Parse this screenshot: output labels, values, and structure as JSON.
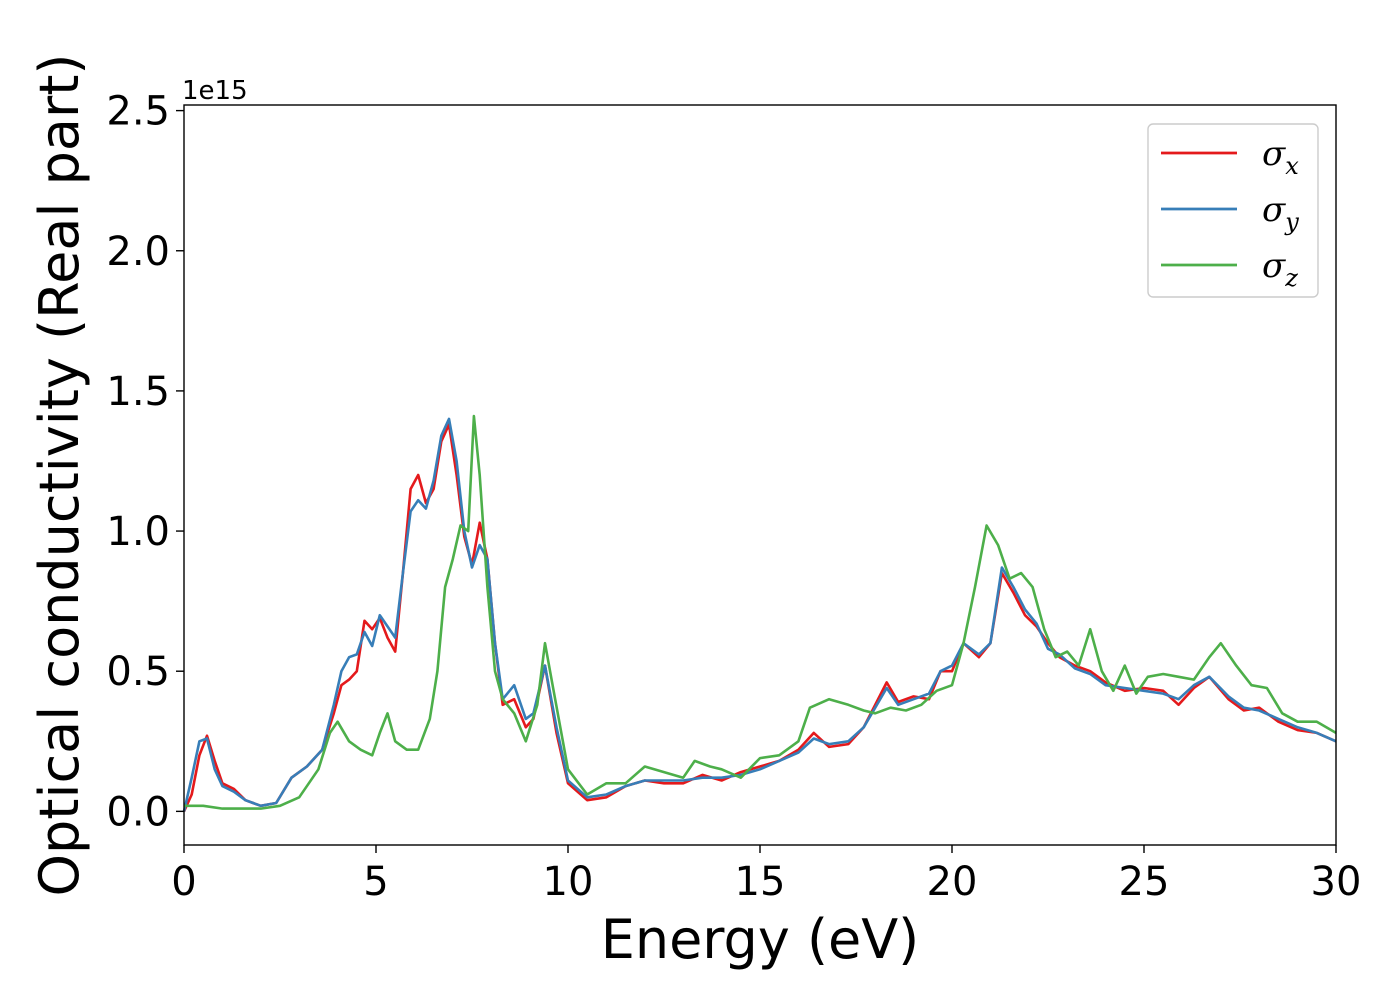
{
  "chart_data": {
    "type": "line",
    "xlabel": "Energy (eV)",
    "ylabel": "Optical conductivity (Real part)",
    "y_offset_label": "1e15",
    "xlim": [
      0,
      30
    ],
    "ylim": [
      -0.12,
      2.52
    ],
    "xticks": [
      "0",
      "5",
      "10",
      "15",
      "20",
      "25",
      "30"
    ],
    "yticks": [
      "0.0",
      "0.5",
      "1.0",
      "1.5",
      "2.0",
      "2.5"
    ],
    "xtick_values": [
      0,
      5,
      10,
      15,
      20,
      25,
      30
    ],
    "ytick_values": [
      0.0,
      0.5,
      1.0,
      1.5,
      2.0,
      2.5
    ],
    "grid": false,
    "legend_position": "top-right",
    "series": [
      {
        "name": "σ",
        "subscript": "x",
        "color": "#e41a1c",
        "points": [
          [
            0,
            0.0
          ],
          [
            0.2,
            0.06
          ],
          [
            0.4,
            0.2
          ],
          [
            0.6,
            0.27
          ],
          [
            0.8,
            0.18
          ],
          [
            1.0,
            0.1
          ],
          [
            1.3,
            0.08
          ],
          [
            1.6,
            0.04
          ],
          [
            2.0,
            0.02
          ],
          [
            2.4,
            0.03
          ],
          [
            2.8,
            0.12
          ],
          [
            3.2,
            0.16
          ],
          [
            3.6,
            0.22
          ],
          [
            3.9,
            0.35
          ],
          [
            4.1,
            0.45
          ],
          [
            4.3,
            0.47
          ],
          [
            4.5,
            0.5
          ],
          [
            4.7,
            0.68
          ],
          [
            4.9,
            0.65
          ],
          [
            5.1,
            0.69
          ],
          [
            5.3,
            0.62
          ],
          [
            5.5,
            0.57
          ],
          [
            5.7,
            0.85
          ],
          [
            5.9,
            1.15
          ],
          [
            6.1,
            1.2
          ],
          [
            6.3,
            1.1
          ],
          [
            6.5,
            1.15
          ],
          [
            6.7,
            1.32
          ],
          [
            6.9,
            1.38
          ],
          [
            7.1,
            1.2
          ],
          [
            7.3,
            0.98
          ],
          [
            7.5,
            0.88
          ],
          [
            7.7,
            1.03
          ],
          [
            7.9,
            0.9
          ],
          [
            8.1,
            0.6
          ],
          [
            8.3,
            0.38
          ],
          [
            8.6,
            0.4
          ],
          [
            8.9,
            0.3
          ],
          [
            9.1,
            0.33
          ],
          [
            9.4,
            0.52
          ],
          [
            9.7,
            0.28
          ],
          [
            10.0,
            0.1
          ],
          [
            10.5,
            0.04
          ],
          [
            11.0,
            0.05
          ],
          [
            11.5,
            0.09
          ],
          [
            12.0,
            0.11
          ],
          [
            12.5,
            0.1
          ],
          [
            13.0,
            0.1
          ],
          [
            13.5,
            0.13
          ],
          [
            14.0,
            0.11
          ],
          [
            14.5,
            0.14
          ],
          [
            15.0,
            0.16
          ],
          [
            15.5,
            0.18
          ],
          [
            16.0,
            0.22
          ],
          [
            16.4,
            0.28
          ],
          [
            16.8,
            0.23
          ],
          [
            17.3,
            0.24
          ],
          [
            17.7,
            0.3
          ],
          [
            18.0,
            0.38
          ],
          [
            18.3,
            0.46
          ],
          [
            18.6,
            0.39
          ],
          [
            19.0,
            0.41
          ],
          [
            19.4,
            0.4
          ],
          [
            19.7,
            0.5
          ],
          [
            20.0,
            0.5
          ],
          [
            20.3,
            0.6
          ],
          [
            20.7,
            0.55
          ],
          [
            21.0,
            0.6
          ],
          [
            21.3,
            0.85
          ],
          [
            21.6,
            0.78
          ],
          [
            21.9,
            0.7
          ],
          [
            22.2,
            0.66
          ],
          [
            22.5,
            0.6
          ],
          [
            22.8,
            0.55
          ],
          [
            23.2,
            0.52
          ],
          [
            23.6,
            0.5
          ],
          [
            24.0,
            0.46
          ],
          [
            24.5,
            0.43
          ],
          [
            25.0,
            0.44
          ],
          [
            25.5,
            0.43
          ],
          [
            25.9,
            0.38
          ],
          [
            26.3,
            0.44
          ],
          [
            26.7,
            0.48
          ],
          [
            27.2,
            0.4
          ],
          [
            27.6,
            0.36
          ],
          [
            28.0,
            0.37
          ],
          [
            28.5,
            0.32
          ],
          [
            29.0,
            0.29
          ],
          [
            29.5,
            0.28
          ],
          [
            30.0,
            0.25
          ]
        ]
      },
      {
        "name": "σ",
        "subscript": "y",
        "color": "#377eb8",
        "points": [
          [
            0,
            0.0
          ],
          [
            0.2,
            0.12
          ],
          [
            0.4,
            0.25
          ],
          [
            0.6,
            0.26
          ],
          [
            0.8,
            0.15
          ],
          [
            1.0,
            0.09
          ],
          [
            1.3,
            0.07
          ],
          [
            1.6,
            0.04
          ],
          [
            2.0,
            0.02
          ],
          [
            2.4,
            0.03
          ],
          [
            2.8,
            0.12
          ],
          [
            3.2,
            0.16
          ],
          [
            3.6,
            0.22
          ],
          [
            3.9,
            0.38
          ],
          [
            4.1,
            0.5
          ],
          [
            4.3,
            0.55
          ],
          [
            4.5,
            0.56
          ],
          [
            4.7,
            0.64
          ],
          [
            4.9,
            0.59
          ],
          [
            5.1,
            0.7
          ],
          [
            5.3,
            0.66
          ],
          [
            5.5,
            0.62
          ],
          [
            5.7,
            0.85
          ],
          [
            5.9,
            1.07
          ],
          [
            6.1,
            1.11
          ],
          [
            6.3,
            1.08
          ],
          [
            6.5,
            1.18
          ],
          [
            6.7,
            1.34
          ],
          [
            6.9,
            1.4
          ],
          [
            7.1,
            1.25
          ],
          [
            7.3,
            1.0
          ],
          [
            7.5,
            0.87
          ],
          [
            7.7,
            0.95
          ],
          [
            7.9,
            0.9
          ],
          [
            8.1,
            0.6
          ],
          [
            8.3,
            0.4
          ],
          [
            8.6,
            0.45
          ],
          [
            8.9,
            0.33
          ],
          [
            9.1,
            0.35
          ],
          [
            9.4,
            0.52
          ],
          [
            9.7,
            0.3
          ],
          [
            10.0,
            0.11
          ],
          [
            10.5,
            0.05
          ],
          [
            11.0,
            0.06
          ],
          [
            11.5,
            0.09
          ],
          [
            12.0,
            0.11
          ],
          [
            12.5,
            0.11
          ],
          [
            13.0,
            0.11
          ],
          [
            13.5,
            0.12
          ],
          [
            14.0,
            0.12
          ],
          [
            14.5,
            0.13
          ],
          [
            15.0,
            0.15
          ],
          [
            15.5,
            0.18
          ],
          [
            16.0,
            0.21
          ],
          [
            16.4,
            0.26
          ],
          [
            16.8,
            0.24
          ],
          [
            17.3,
            0.25
          ],
          [
            17.7,
            0.3
          ],
          [
            18.0,
            0.37
          ],
          [
            18.3,
            0.44
          ],
          [
            18.6,
            0.38
          ],
          [
            19.0,
            0.4
          ],
          [
            19.4,
            0.42
          ],
          [
            19.7,
            0.5
          ],
          [
            20.0,
            0.52
          ],
          [
            20.3,
            0.6
          ],
          [
            20.7,
            0.56
          ],
          [
            21.0,
            0.6
          ],
          [
            21.3,
            0.87
          ],
          [
            21.6,
            0.8
          ],
          [
            21.9,
            0.72
          ],
          [
            22.2,
            0.67
          ],
          [
            22.5,
            0.58
          ],
          [
            22.8,
            0.56
          ],
          [
            23.2,
            0.51
          ],
          [
            23.6,
            0.49
          ],
          [
            24.0,
            0.45
          ],
          [
            24.5,
            0.44
          ],
          [
            25.0,
            0.43
          ],
          [
            25.5,
            0.42
          ],
          [
            25.9,
            0.4
          ],
          [
            26.3,
            0.45
          ],
          [
            26.7,
            0.48
          ],
          [
            27.2,
            0.41
          ],
          [
            27.6,
            0.37
          ],
          [
            28.0,
            0.36
          ],
          [
            28.5,
            0.33
          ],
          [
            29.0,
            0.3
          ],
          [
            29.5,
            0.28
          ],
          [
            30.0,
            0.25
          ]
        ]
      },
      {
        "name": "σ",
        "subscript": "z",
        "color": "#4daf4a",
        "points": [
          [
            0,
            0.02
          ],
          [
            0.5,
            0.02
          ],
          [
            1.0,
            0.01
          ],
          [
            1.5,
            0.01
          ],
          [
            2.0,
            0.01
          ],
          [
            2.5,
            0.02
          ],
          [
            3.0,
            0.05
          ],
          [
            3.5,
            0.15
          ],
          [
            3.8,
            0.28
          ],
          [
            4.0,
            0.32
          ],
          [
            4.3,
            0.25
          ],
          [
            4.6,
            0.22
          ],
          [
            4.9,
            0.2
          ],
          [
            5.1,
            0.28
          ],
          [
            5.3,
            0.35
          ],
          [
            5.5,
            0.25
          ],
          [
            5.8,
            0.22
          ],
          [
            6.1,
            0.22
          ],
          [
            6.4,
            0.33
          ],
          [
            6.6,
            0.5
          ],
          [
            6.8,
            0.8
          ],
          [
            7.0,
            0.9
          ],
          [
            7.2,
            1.02
          ],
          [
            7.4,
            1.0
          ],
          [
            7.55,
            1.41
          ],
          [
            7.7,
            1.2
          ],
          [
            7.9,
            0.8
          ],
          [
            8.1,
            0.5
          ],
          [
            8.3,
            0.4
          ],
          [
            8.6,
            0.35
          ],
          [
            8.9,
            0.25
          ],
          [
            9.2,
            0.38
          ],
          [
            9.4,
            0.6
          ],
          [
            9.6,
            0.45
          ],
          [
            10.0,
            0.15
          ],
          [
            10.5,
            0.06
          ],
          [
            11.0,
            0.1
          ],
          [
            11.5,
            0.1
          ],
          [
            12.0,
            0.16
          ],
          [
            12.5,
            0.14
          ],
          [
            13.0,
            0.12
          ],
          [
            13.3,
            0.18
          ],
          [
            13.7,
            0.16
          ],
          [
            14.0,
            0.15
          ],
          [
            14.5,
            0.12
          ],
          [
            15.0,
            0.19
          ],
          [
            15.5,
            0.2
          ],
          [
            16.0,
            0.25
          ],
          [
            16.3,
            0.37
          ],
          [
            16.8,
            0.4
          ],
          [
            17.3,
            0.38
          ],
          [
            17.7,
            0.36
          ],
          [
            18.0,
            0.35
          ],
          [
            18.4,
            0.37
          ],
          [
            18.8,
            0.36
          ],
          [
            19.2,
            0.38
          ],
          [
            19.6,
            0.43
          ],
          [
            20.0,
            0.45
          ],
          [
            20.3,
            0.6
          ],
          [
            20.6,
            0.8
          ],
          [
            20.9,
            1.02
          ],
          [
            21.2,
            0.95
          ],
          [
            21.5,
            0.83
          ],
          [
            21.8,
            0.85
          ],
          [
            22.1,
            0.8
          ],
          [
            22.4,
            0.65
          ],
          [
            22.7,
            0.55
          ],
          [
            23.0,
            0.57
          ],
          [
            23.3,
            0.52
          ],
          [
            23.6,
            0.65
          ],
          [
            23.9,
            0.5
          ],
          [
            24.2,
            0.43
          ],
          [
            24.5,
            0.52
          ],
          [
            24.8,
            0.42
          ],
          [
            25.1,
            0.48
          ],
          [
            25.5,
            0.49
          ],
          [
            25.9,
            0.48
          ],
          [
            26.3,
            0.47
          ],
          [
            26.7,
            0.55
          ],
          [
            27.0,
            0.6
          ],
          [
            27.4,
            0.52
          ],
          [
            27.8,
            0.45
          ],
          [
            28.2,
            0.44
          ],
          [
            28.6,
            0.35
          ],
          [
            29.0,
            0.32
          ],
          [
            29.5,
            0.32
          ],
          [
            30.0,
            0.28
          ]
        ]
      }
    ]
  }
}
